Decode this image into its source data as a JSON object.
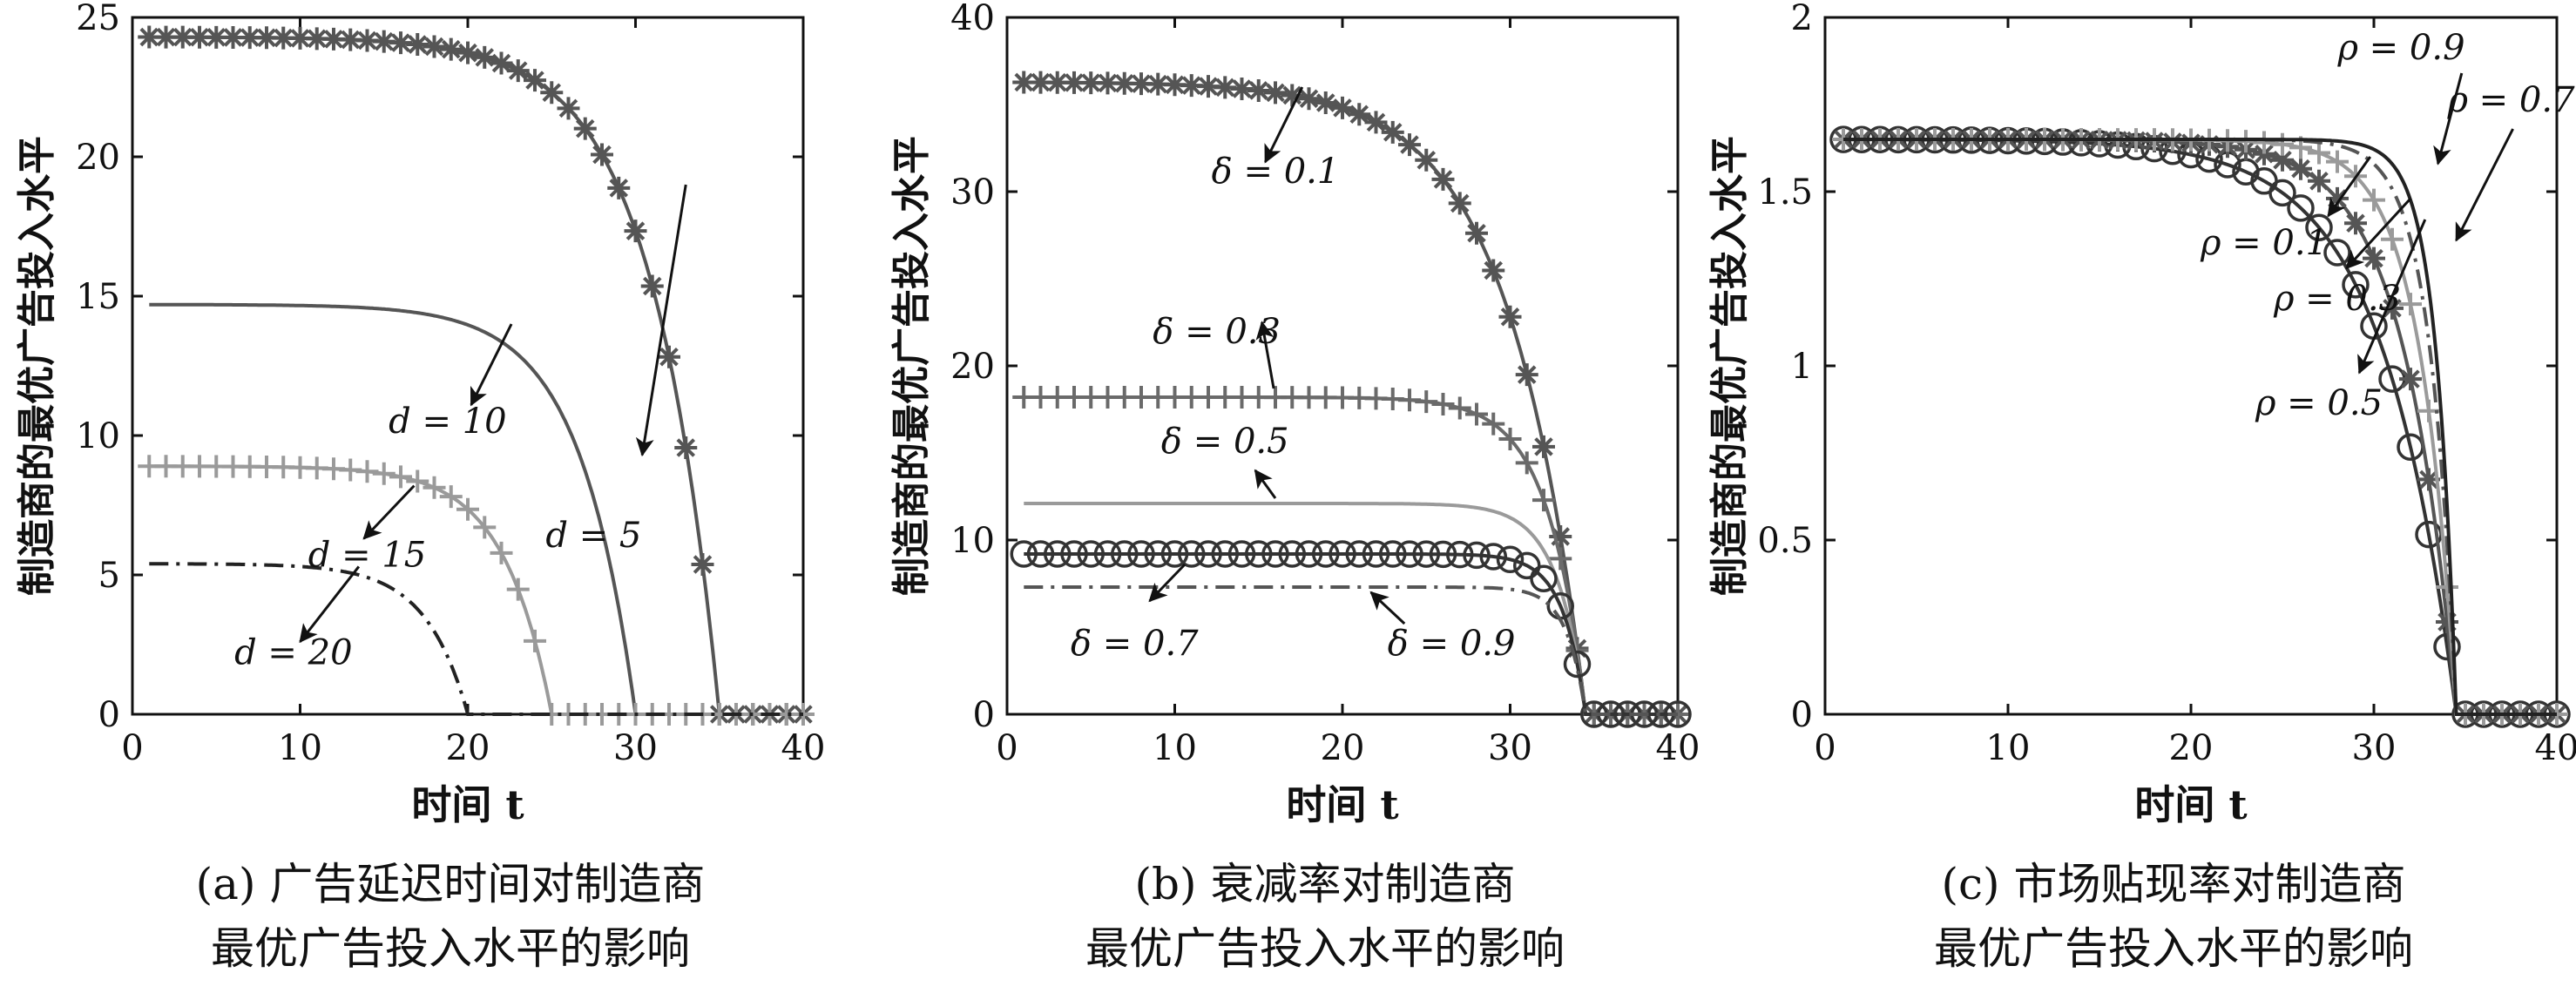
{
  "chart_data": [
    {
      "type": "line",
      "panel": "a",
      "xlabel": "时间 t",
      "ylabel": "制造商的最优广告投入水平",
      "xlim": [
        0,
        40
      ],
      "ylim": [
        0,
        25
      ],
      "xticks": [
        "0",
        "10",
        "20",
        "30",
        "40"
      ],
      "yticks": [
        "0",
        "5",
        "10",
        "15",
        "20",
        "25"
      ],
      "caption": [
        "(a) 广告延迟时间对制造商",
        "最优广告投入水平的影响"
      ],
      "series": [
        {
          "name": "d = 5",
          "plateau": 24.3,
          "end": 35,
          "k": 0.25,
          "marker": "star",
          "color": "#555555",
          "dash": ""
        },
        {
          "name": "d = 10",
          "plateau": 14.7,
          "end": 30,
          "k": 0.3,
          "marker": "none",
          "color": "#555555",
          "dash": ""
        },
        {
          "name": "d = 15",
          "plateau": 8.9,
          "end": 25,
          "k": 0.35,
          "marker": "plus",
          "color": "#9a9a9a",
          "dash": ""
        },
        {
          "name": "d = 20",
          "plateau": 5.4,
          "end": 20,
          "k": 0.4,
          "marker": "none",
          "color": "#222222",
          "dash": "22 9 4 9"
        }
      ],
      "annotations": [
        {
          "text": "d = 5",
          "x": 27.5,
          "y": 6.0,
          "tx": 30.4,
          "ty": 9.3,
          "ax": 33.0,
          "ay": 19.0
        },
        {
          "text": "d = 10",
          "x": 18.8,
          "y": 10.1,
          "tx": 20.2,
          "ty": 11.1,
          "ax": 22.6,
          "ay": 14.0
        },
        {
          "text": "d = 15",
          "x": 14.0,
          "y": 5.3,
          "tx": 13.8,
          "ty": 6.3,
          "ax": 16.8,
          "ay": 8.2
        },
        {
          "text": "d = 20",
          "x": 9.6,
          "y": 1.8,
          "tx": 10.0,
          "ty": 2.6,
          "ax": 13.5,
          "ay": 5.3
        }
      ]
    },
    {
      "type": "line",
      "panel": "b",
      "xlabel": "时间 t",
      "ylabel": "制造商的最优广告投入水平",
      "xlim": [
        0,
        40
      ],
      "ylim": [
        0,
        40
      ],
      "xticks": [
        "0",
        "10",
        "20",
        "30",
        "40"
      ],
      "yticks": [
        "0",
        "10",
        "20",
        "30",
        "40"
      ],
      "caption": [
        "(b) 衰减率对制造商",
        "最优广告投入水平的影响"
      ],
      "series": [
        {
          "name": "δ = 0.1",
          "plateau": 36.3,
          "end": 34.5,
          "k": 0.22,
          "marker": "star",
          "color": "#555555",
          "dash": ""
        },
        {
          "name": "δ = 0.3",
          "plateau": 18.2,
          "end": 34.5,
          "k": 0.45,
          "marker": "plus",
          "color": "#6a6a6a",
          "dash": ""
        },
        {
          "name": "δ = 0.5",
          "plateau": 12.1,
          "end": 34.5,
          "k": 0.6,
          "marker": "none",
          "color": "#9a9a9a",
          "dash": ""
        },
        {
          "name": "δ = 0.7",
          "plateau": 9.2,
          "end": 34.5,
          "k": 0.75,
          "marker": "circle",
          "color": "#333333",
          "dash": ""
        },
        {
          "name": "δ = 0.9",
          "plateau": 7.3,
          "end": 34.5,
          "k": 0.9,
          "marker": "none",
          "color": "#555555",
          "dash": "22 9 4 9"
        }
      ],
      "annotations": [
        {
          "text": "δ = 0.1",
          "x": 16.0,
          "y": 30.5,
          "tx": 15.4,
          "ty": 31.7,
          "ax": 17.6,
          "ay": 36.0
        },
        {
          "text": "δ = 0.3",
          "x": 12.5,
          "y": 21.3,
          "tx": 15.2,
          "ty": 22.5,
          "ax": 15.9,
          "ay": 18.7
        },
        {
          "text": "δ = 0.5",
          "x": 13.0,
          "y": 15.0,
          "tx": 14.8,
          "ty": 14.0,
          "ax": 16.0,
          "ay": 12.4
        },
        {
          "text": "δ = 0.7",
          "x": 7.6,
          "y": 3.4,
          "tx": 8.5,
          "ty": 6.5,
          "ax": 10.6,
          "ay": 8.6
        },
        {
          "text": "δ = 0.9",
          "x": 26.5,
          "y": 3.4,
          "tx": 21.7,
          "ty": 7.0,
          "ax": 23.7,
          "ay": 5.2
        }
      ]
    },
    {
      "type": "line",
      "panel": "c",
      "xlabel": "时间 t",
      "ylabel": "制造商的最优广告投入水平",
      "xlim": [
        0,
        40
      ],
      "ylim": [
        0,
        2
      ],
      "xticks": [
        "0",
        "10",
        "20",
        "30",
        "40"
      ],
      "yticks": [
        "0",
        "0.5",
        "1",
        "1.5",
        "2"
      ],
      "caption": [
        "(c) 市场贴现率对制造商",
        "最优广告投入水平的影响"
      ],
      "series": [
        {
          "name": "ρ = 0.1",
          "plateau": 1.65,
          "end": 34.5,
          "k": 0.25,
          "marker": "circle",
          "color": "#333333",
          "dash": ""
        },
        {
          "name": "ρ = 0.3",
          "plateau": 1.65,
          "end": 34.5,
          "k": 0.35,
          "marker": "star",
          "color": "#555555",
          "dash": ""
        },
        {
          "name": "ρ = 0.5",
          "plateau": 1.65,
          "end": 34.5,
          "k": 0.5,
          "marker": "plus",
          "color": "#9a9a9a",
          "dash": ""
        },
        {
          "name": "ρ = 0.7",
          "plateau": 1.65,
          "end": 34.5,
          "k": 0.7,
          "marker": "none",
          "color": "#555555",
          "dash": "22 9 4 9"
        },
        {
          "name": "ρ = 0.9",
          "plateau": 1.65,
          "end": 34.5,
          "k": 0.9,
          "marker": "none",
          "color": "#222222",
          "dash": ""
        }
      ],
      "annotations": [
        {
          "text": "ρ = 0.1",
          "x": 24.0,
          "y": 1.32,
          "tx": 27.5,
          "ty": 1.43,
          "ax": 29.8,
          "ay": 1.6
        },
        {
          "text": "ρ = 0.3",
          "x": 28.0,
          "y": 1.16,
          "tx": 28.5,
          "ty": 1.28,
          "ax": 32.0,
          "ay": 1.48
        },
        {
          "text": "ρ = 0.5",
          "x": 27.0,
          "y": 0.86,
          "tx": 29.2,
          "ty": 0.98,
          "ax": 32.8,
          "ay": 1.42
        },
        {
          "text": "ρ = 0.7",
          "x": 37.5,
          "y": 1.73,
          "tx": 34.5,
          "ty": 1.36,
          "ax": 37.6,
          "ay": 1.68
        },
        {
          "text": "ρ = 0.9",
          "x": 31.5,
          "y": 1.88,
          "tx": 33.5,
          "ty": 1.58,
          "ax": 34.8,
          "ay": 1.84
        }
      ]
    }
  ]
}
